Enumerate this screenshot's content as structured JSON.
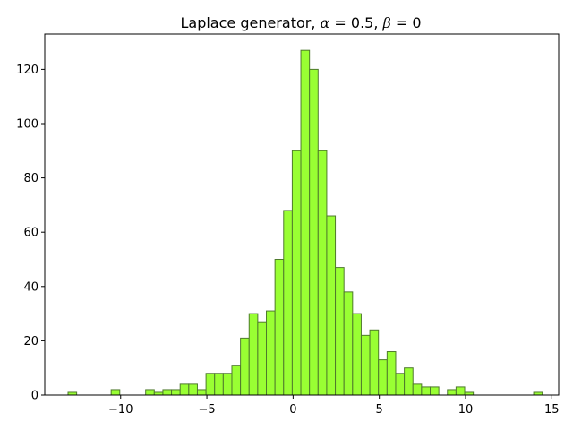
{
  "chart_data": {
    "type": "bar",
    "title": {
      "prefix": "Laplace generator, ",
      "alpha_symbol": "α",
      "alpha_value": " = 0.5, ",
      "beta_symbol": "β",
      "beta_value": " = 0"
    },
    "xlabel": "",
    "ylabel": "",
    "xlim": [
      -14.4,
      15.4
    ],
    "ylim": [
      0,
      133
    ],
    "xticks": [
      -10,
      -5,
      0,
      5,
      10,
      15
    ],
    "xtick_labels": [
      "−10",
      "−5",
      "0",
      "5",
      "10",
      "15"
    ],
    "yticks": [
      0,
      20,
      40,
      60,
      80,
      100,
      120
    ],
    "ytick_labels": [
      "0",
      "20",
      "40",
      "60",
      "80",
      "100",
      "120"
    ],
    "grid": false,
    "bin_start": -13.05,
    "bin_width": 0.5,
    "values": [
      1,
      0,
      0,
      0,
      0,
      2,
      0,
      0,
      0,
      2,
      1,
      2,
      2,
      4,
      4,
      2,
      8,
      8,
      8,
      11,
      21,
      30,
      27,
      31,
      50,
      68,
      90,
      127,
      120,
      90,
      66,
      47,
      38,
      30,
      22,
      24,
      13,
      16,
      8,
      10,
      4,
      3,
      3,
      0,
      2,
      3,
      1,
      0,
      0,
      0,
      0,
      0,
      0,
      0,
      1
    ],
    "bar_color": "#99ff33",
    "edge_color": "#4f7a2d"
  }
}
